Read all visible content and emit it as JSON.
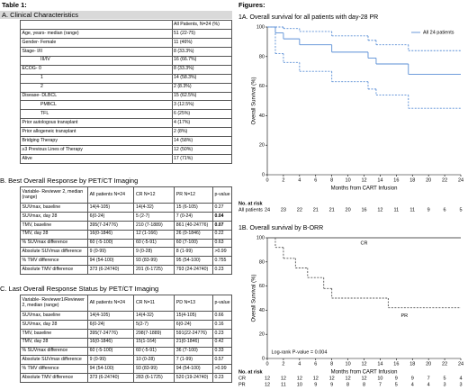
{
  "table_title": "Table 1:",
  "section_a": {
    "title": "A. Clinical Characteristics",
    "header": "All Patients, N=24 (%)",
    "indented_rows": [
      3,
      5,
      6,
      8,
      9
    ],
    "rows": [
      [
        "Age, years- median (range)",
        "51 (22-75)"
      ],
      [
        "Gender- Female",
        "11 (46%)"
      ],
      [
        "Stage- I/II",
        "8 (33.3%)"
      ],
      [
        "III/IV",
        "16 (66.7%)"
      ],
      [
        "ECOG- 0",
        "8 (33.3%)"
      ],
      [
        "1",
        "14 (58.3%)"
      ],
      [
        "2",
        "2 (8.3%)"
      ],
      [
        "Disease- DLBCL",
        "15 (62.5%)"
      ],
      [
        "PMBCL",
        "3 (12.5%)"
      ],
      [
        "TFL",
        "6 (25%)"
      ],
      [
        "Prior autologous transplant",
        "4 (17%)"
      ],
      [
        "Prior allogeneic transplant",
        "2 (8%)"
      ],
      [
        "Bridging Therapy",
        "14 (58%)"
      ],
      [
        "≥3 Previous Lines of Therapy",
        "12 (50%)"
      ],
      [
        "Alive",
        "17 (71%)"
      ]
    ]
  },
  "section_b": {
    "title": "B.  Best Overall Response by PET/CT Imaging",
    "header": [
      "Variable- Reviewer 2, median (range)",
      "All patients N=24",
      "CR N=12",
      "PR N=12",
      "p-value"
    ],
    "bold_p_rows": [
      1,
      2
    ],
    "rows": [
      [
        "SUVmax, baseline",
        "14(4-105)",
        "14(4-32)",
        "15 (6-105)",
        "0.27"
      ],
      [
        "SUVmax, day 28",
        "6(0-24)",
        "5 (2-7)",
        "7 (0-24)",
        "0.04"
      ],
      [
        "TMV, baseline",
        "395(7-24776)",
        "210 (7-1889)",
        "861 (40-24776)",
        "0.07"
      ],
      [
        "TMV, day 28",
        "16(0-1846)",
        "12 (1-166)",
        "26 (0-1846)",
        "0.22"
      ],
      [
        "% SUVmax difference",
        "60 (-5-100)",
        "60 (-5-91)",
        "60 (7-100)",
        "0.63"
      ],
      [
        "Absolute SUVmax difference",
        "9 (0-99)",
        "9 (0-28)",
        "8 (1-99)",
        ">0.99"
      ],
      [
        "% TMV difference",
        "94 (54-100)",
        "93 (83-99)",
        "95 (54-100)",
        "0.755"
      ],
      [
        "Absolute TMV difference",
        "373 (6-24740)",
        "201 (6-1725)",
        "793 (24-24740)",
        "0.23"
      ]
    ]
  },
  "section_c": {
    "title": "C.  Last Overall Response Status by PET/CT Imaging",
    "header": [
      "Variable- Reviewer1/Reviewer 2, median (range)",
      "All patients N=24",
      "CR N=11",
      "PD N=13",
      "p-value"
    ],
    "bold_p_rows": [],
    "rows": [
      [
        "SUVmax, baseline",
        "14(4-105)",
        "14(4-32)",
        "15(4-105)",
        "0.66"
      ],
      [
        "SUVmax, day 28",
        "6(0-24)",
        "5(2-7)",
        "6(0-24)",
        "0.16"
      ],
      [
        "TMV, baseline",
        "395(7-24776)",
        "298(7-1889)",
        "591(22-24776)",
        "0.23"
      ],
      [
        "TMV, day 28",
        "16(0-1846)",
        "15(1-164)",
        "21(0-1846)",
        "0.42"
      ],
      [
        "% SUVmax difference",
        "60 (-5-100)",
        "60 (-5-91)",
        "36 (7-100)",
        "0.33"
      ],
      [
        "Absolute SUVmax difference",
        "9 (0-99)",
        "10 (0-28)",
        "7 (1-99)",
        "0.57"
      ],
      [
        "% TMV difference",
        "94 (54-100)",
        "93 (83-99)",
        "94 (54-100)",
        ">0.99"
      ],
      [
        "Absolute TMV difference",
        "373 (6-24740)",
        "283 (6-1725)",
        "520 (19-24740)",
        "0.23"
      ]
    ]
  },
  "figures_title": "Figures:",
  "figure_1a": {
    "type": "line",
    "title": "1A. Overall survival for all patients with day-28 PR",
    "x_label": "Months from CART Infusion",
    "y_label": "Overall Survival (%)",
    "xlim": [
      0,
      24
    ],
    "ylim": [
      0,
      100
    ],
    "xticks": [
      0,
      2,
      4,
      6,
      8,
      10,
      12,
      14,
      16,
      18,
      20,
      22,
      24
    ],
    "yticks": [
      0,
      20,
      40,
      60,
      80,
      100
    ],
    "legend": "upper right",
    "series": [
      {
        "name": "All 24 patients",
        "color": "#5b8fd6",
        "dashed": false,
        "x": [
          0,
          1,
          2,
          4,
          8,
          12.5,
          13.5,
          17.5
        ],
        "values": [
          100,
          96,
          92,
          88,
          83,
          79,
          75,
          68
        ]
      },
      {
        "color": "#5b8fd6",
        "dashed": true,
        "x": [
          0,
          1,
          2,
          4,
          8,
          12.5,
          13.5,
          17.5
        ],
        "values": [
          100,
          100,
          99,
          97,
          94,
          91,
          88,
          84
        ]
      },
      {
        "color": "#5b8fd6",
        "dashed": true,
        "x": [
          0,
          1,
          2,
          4,
          8,
          12.5,
          13.5,
          17.5
        ],
        "values": [
          100,
          82,
          76,
          70,
          63,
          58,
          54,
          45
        ]
      }
    ],
    "at_risk": {
      "title": "No. at risk",
      "rows": [
        {
          "name": "All patients",
          "values": [
            24,
            23,
            22,
            21,
            21,
            20,
            16,
            12,
            11,
            11,
            9,
            6,
            5
          ]
        }
      ]
    }
  },
  "figure_1b": {
    "type": "line",
    "title": "1B. Overall survival by B-ORR",
    "x_label": "Months from CART Infusion",
    "y_label": "Overall Survival (%)",
    "xlim": [
      0,
      24
    ],
    "ylim": [
      0,
      100
    ],
    "xticks": [
      0,
      2,
      4,
      6,
      8,
      10,
      12,
      14,
      16,
      18,
      20,
      22,
      24
    ],
    "yticks": [
      0,
      20,
      40,
      60,
      80,
      100
    ],
    "annotation": "Log-rank P-value = 0.004",
    "series": [
      {
        "name": "CR",
        "color": "#555555",
        "dashed": false,
        "x": [
          0
        ],
        "values": [
          100
        ]
      },
      {
        "name": "PR",
        "color": "#555555",
        "dashed": true,
        "x": [
          0,
          1,
          2,
          3.5,
          5,
          7,
          8,
          15
        ],
        "values": [
          100,
          92,
          83,
          75,
          67,
          58,
          50,
          42
        ]
      }
    ],
    "at_risk": {
      "title": "No. at risk",
      "rows": [
        {
          "name": "CR",
          "values": [
            12,
            12,
            12,
            12,
            12,
            12,
            12,
            10,
            9,
            9,
            7,
            5,
            4
          ]
        },
        {
          "name": "PR",
          "values": [
            12,
            11,
            10,
            9,
            9,
            8,
            8,
            7,
            5,
            4,
            4,
            3,
            3
          ]
        }
      ]
    }
  }
}
